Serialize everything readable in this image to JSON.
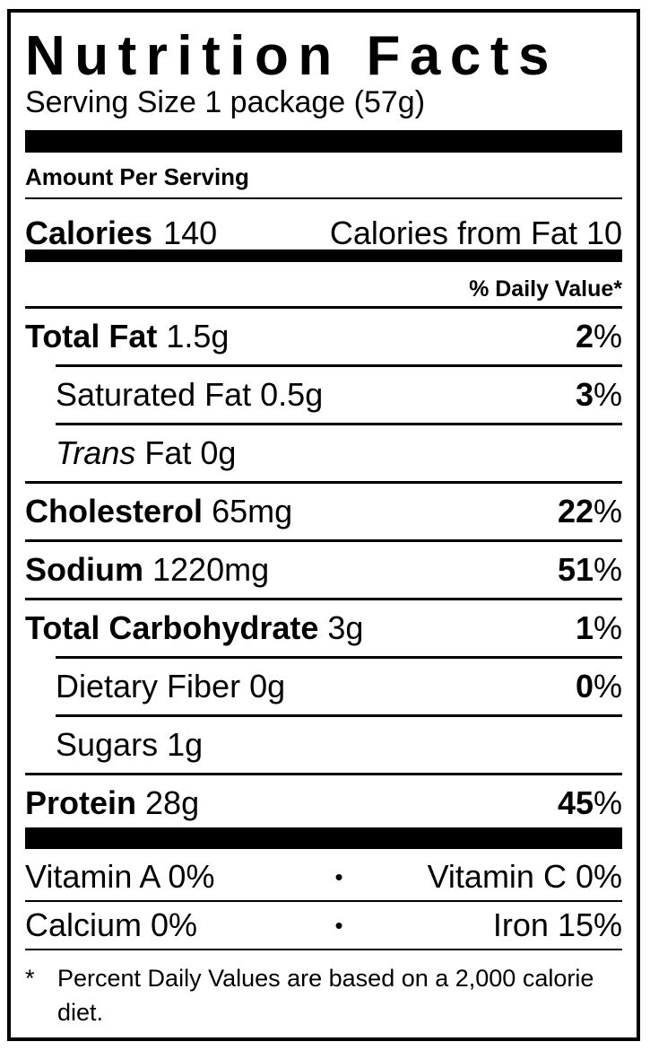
{
  "header": {
    "title": "Nutrition Facts",
    "serving_size": "Serving Size 1 package (57g)"
  },
  "amount_per_serving": "Amount Per Serving",
  "calories": {
    "label": "Calories",
    "value": "140",
    "from_fat": "Calories from Fat 10"
  },
  "daily_value_header": "% Daily Value*",
  "rows": [
    {
      "label": "Total Fat",
      "amount": "1.5g",
      "dv": "2",
      "dv_unit": "%"
    },
    {
      "label": "Saturated Fat",
      "amount": "0.5g",
      "dv": "3",
      "dv_unit": "%"
    },
    {
      "label_italic": "Trans",
      "label": "Fat",
      "amount": "0g"
    },
    {
      "label": "Cholesterol",
      "amount": "65mg",
      "dv": "22",
      "dv_unit": "%"
    },
    {
      "label": "Sodium",
      "amount": "1220mg",
      "dv": "51",
      "dv_unit": "%"
    },
    {
      "label": "Total Carbohydrate",
      "amount": "3g",
      "dv": "1",
      "dv_unit": "%"
    },
    {
      "label": "Dietary Fiber",
      "amount": "0g",
      "dv": "0",
      "dv_unit": "%"
    },
    {
      "label": "Sugars",
      "amount": "1g"
    },
    {
      "label": "Protein",
      "amount": "28g",
      "dv": "45",
      "dv_unit": "%"
    }
  ],
  "vitamins": [
    {
      "left": "Vitamin A 0%",
      "separator": "•",
      "right": "Vitamin C 0%"
    },
    {
      "left": "Calcium 0%",
      "separator": "•",
      "right": "Iron 15%"
    }
  ],
  "footnote": {
    "marker": "*",
    "text": "Percent Daily Values are based on a 2,000 calorie diet."
  }
}
